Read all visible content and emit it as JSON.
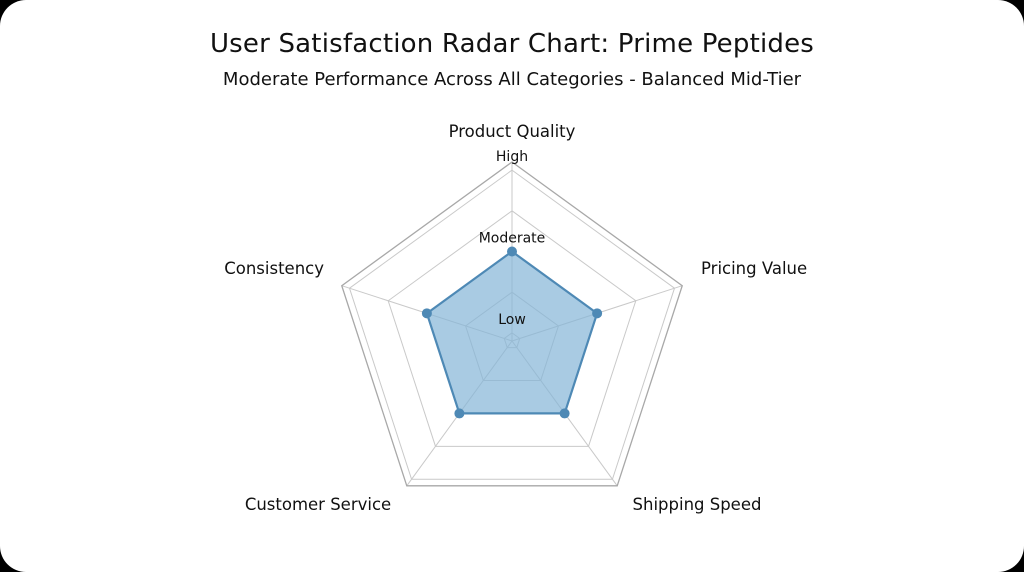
{
  "title": "User Satisfaction Radar Chart: Prime Peptides",
  "subtitle": "Moderate Performance Across All Categories - Balanced Mid-Tier",
  "chart_data": {
    "type": "radar",
    "categories": [
      "Product Quality",
      "Pricing Value",
      "Shipping Speed",
      "Customer Service",
      "Consistency"
    ],
    "series": [
      {
        "name": "Prime Peptides",
        "values": [
          2,
          2,
          2,
          2,
          2
        ]
      }
    ],
    "tick_labels": [
      {
        "value": 1,
        "label": "Low"
      },
      {
        "value": 2,
        "label": "Moderate"
      },
      {
        "value": 3,
        "label": "High"
      }
    ],
    "grid_values": [
      1,
      1.5,
      2,
      2.5,
      3
    ],
    "axis_range": [
      0.9,
      3.1
    ],
    "legend": "none",
    "grid": "on",
    "fill_color": "#85b5d7",
    "fill_opacity": 0.7,
    "stroke_color": "#4e89b5",
    "grid_color": "#c9c9c9",
    "frame_color": "#a8a8a8",
    "label_color": "#111111"
  }
}
